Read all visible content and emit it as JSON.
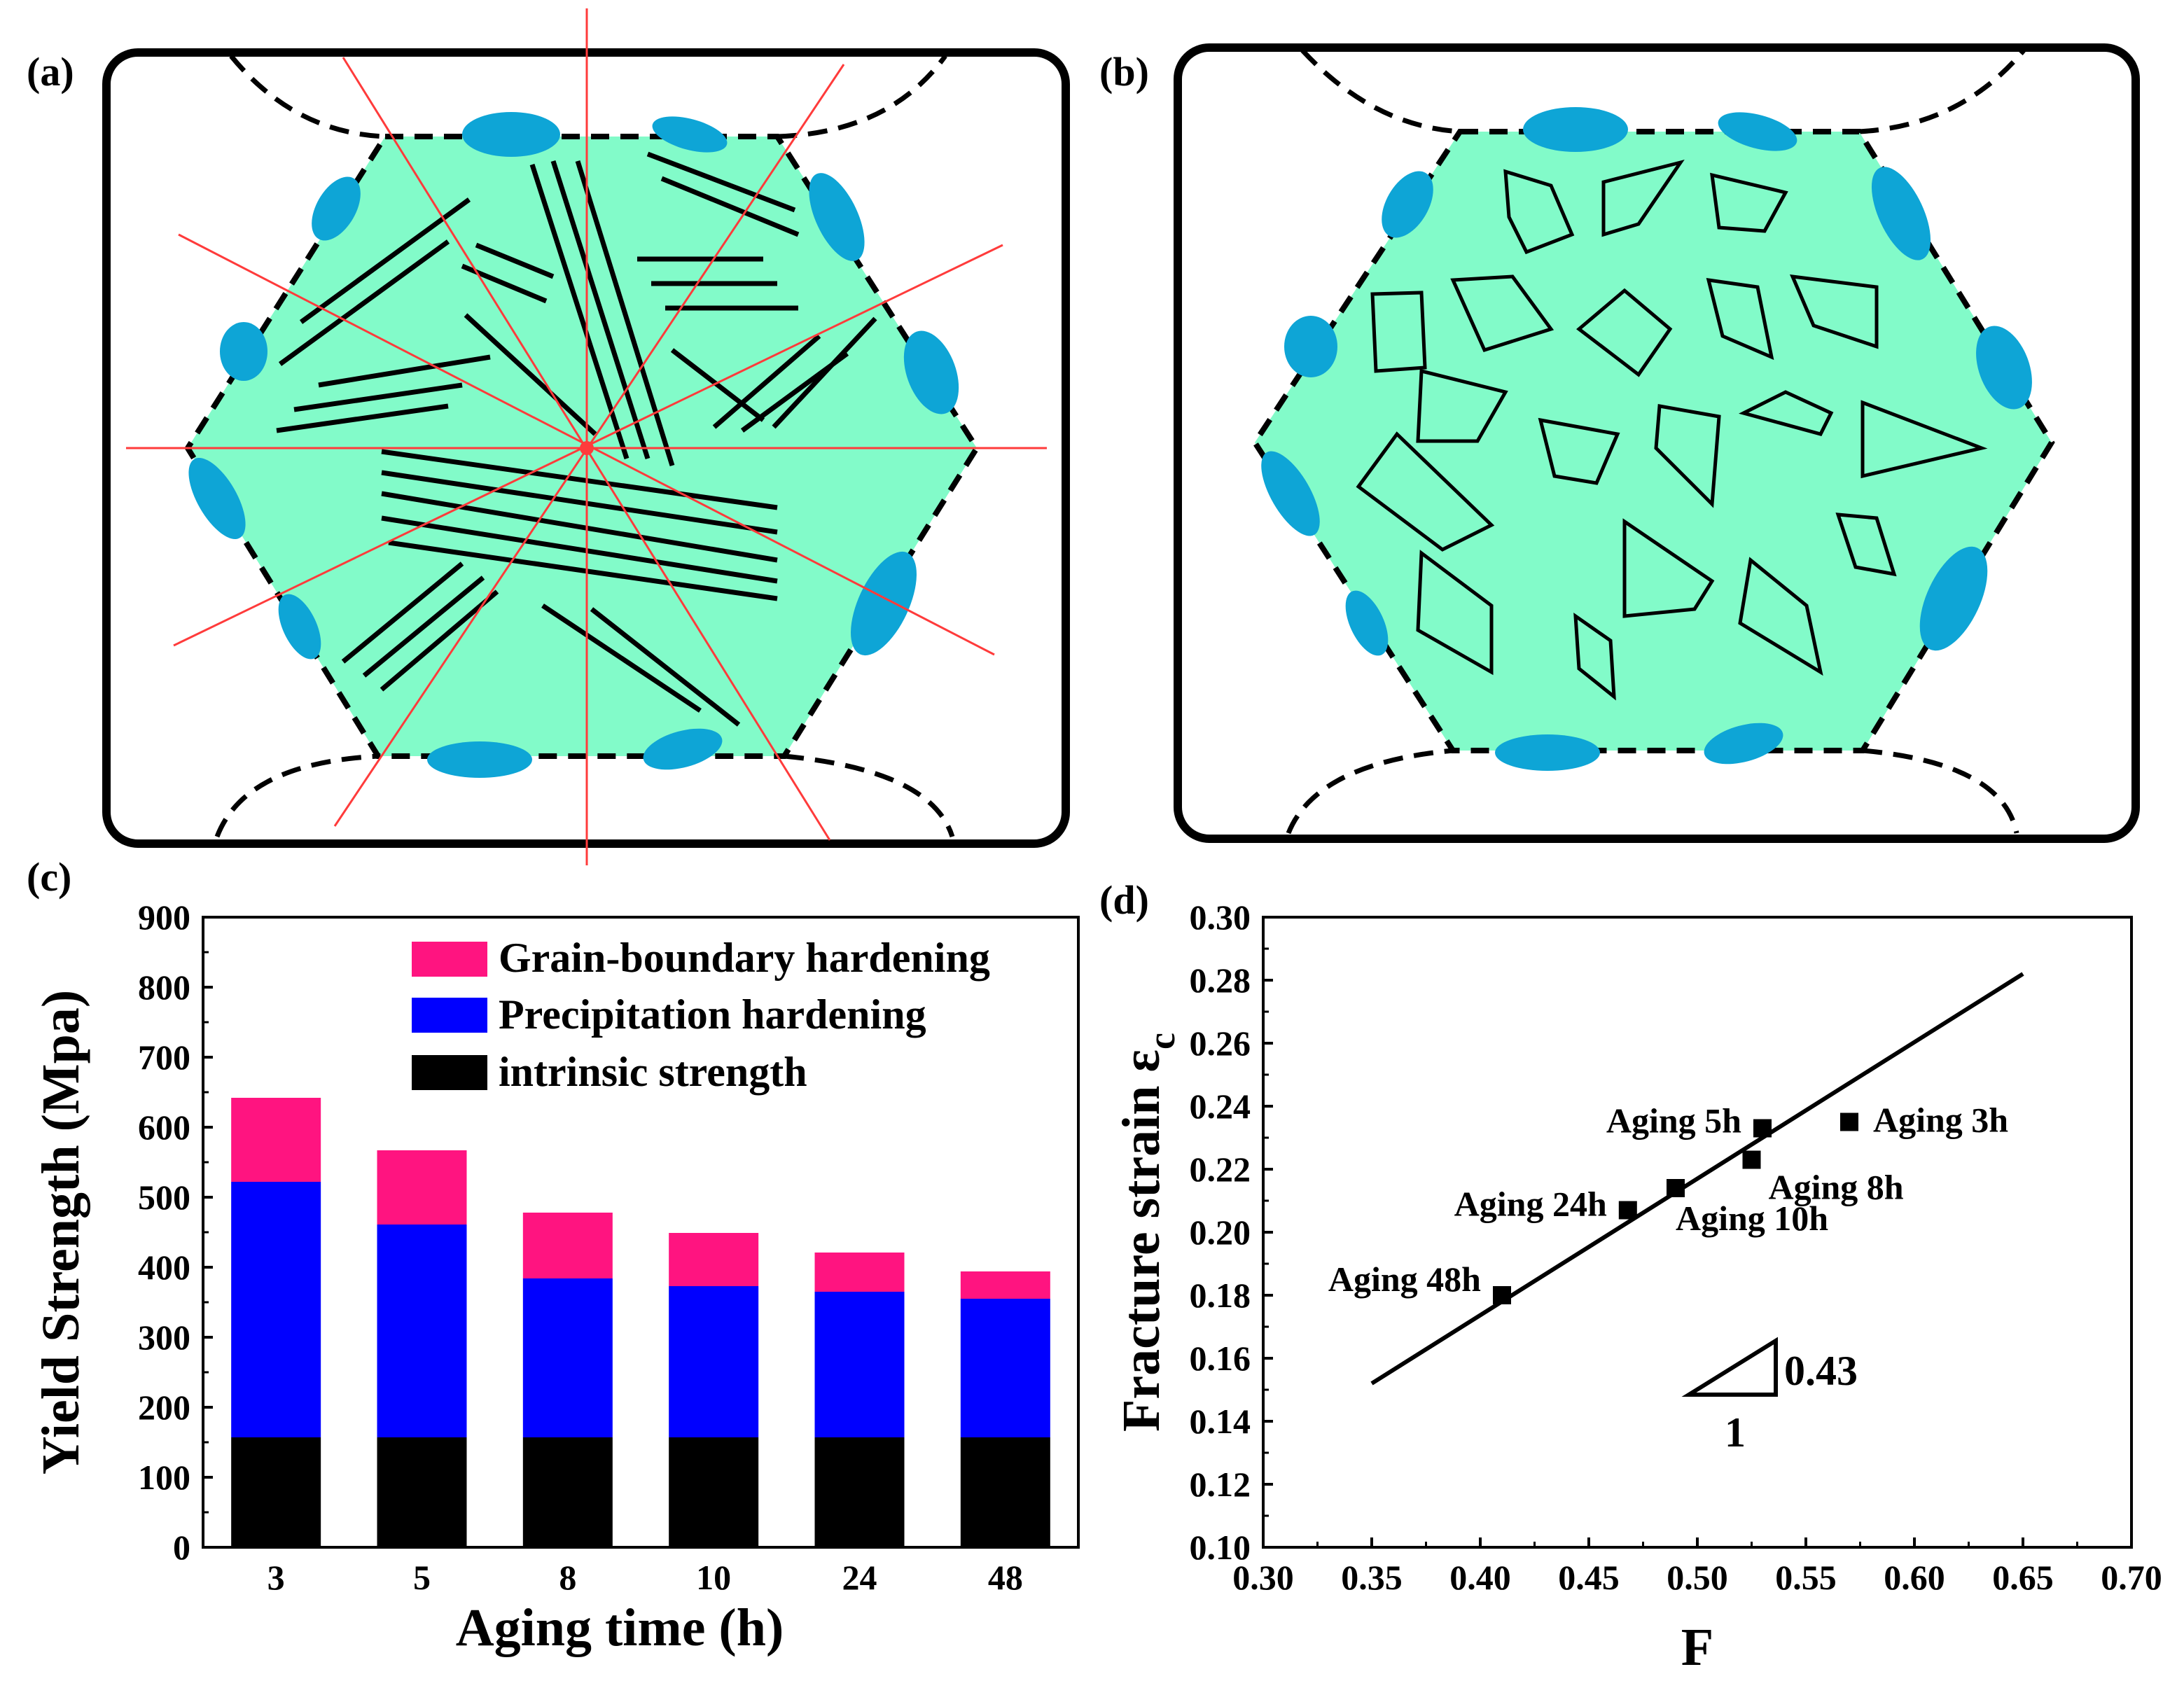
{
  "figure": {
    "panel_labels": {
      "a": "(a)",
      "b": "(b)",
      "c": "(c)",
      "d": "(d)"
    }
  },
  "colors": {
    "grain_fill": "#82fbc9",
    "boundary_particle": "#0ea5d6",
    "radial_line": "#ff3b3b",
    "grain_boundary_hardening": "#ff1480",
    "precipitation_hardening": "#0000ff",
    "intrinsic_strength": "#000000"
  },
  "chart_data": [
    {
      "panel": "(c)",
      "type": "bar",
      "stacked": true,
      "categories": [
        "3",
        "5",
        "8",
        "10",
        "24",
        "48"
      ],
      "series": [
        {
          "name": "intrinsic strength",
          "color": "#000000",
          "values": [
            157,
            157,
            157,
            157,
            157,
            157
          ]
        },
        {
          "name": "Precipitation hardening",
          "color": "#0000ff",
          "values": [
            365,
            304,
            227,
            216,
            208,
            198
          ]
        },
        {
          "name": "Grain-boundary hardening",
          "color": "#ff1480",
          "values": [
            120,
            106,
            94,
            76,
            56,
            39
          ]
        }
      ],
      "legend_order": [
        "Grain-boundary hardening",
        "Precipitation hardening",
        "intrinsic strength"
      ],
      "legend_position": "top-right",
      "xlabel": "Aging time (h)",
      "ylabel": "Yield Strength (Mpa)",
      "ylim": [
        0,
        900
      ],
      "yticks": [
        "0",
        "100",
        "200",
        "300",
        "400",
        "500",
        "600",
        "700",
        "800",
        "900"
      ]
    },
    {
      "panel": "(d)",
      "type": "scatter",
      "points": [
        {
          "label": "Aging 3h",
          "x": 0.57,
          "y": 0.235
        },
        {
          "label": "Aging 5h",
          "x": 0.53,
          "y": 0.233
        },
        {
          "label": "Aging 8h",
          "x": 0.525,
          "y": 0.223
        },
        {
          "label": "Aging 10h",
          "x": 0.49,
          "y": 0.214
        },
        {
          "label": "Aging 24h",
          "x": 0.468,
          "y": 0.207
        },
        {
          "label": "Aging 48h",
          "x": 0.41,
          "y": 0.18
        }
      ],
      "fit_line": {
        "x": [
          0.35,
          0.65
        ],
        "y": [
          0.152,
          0.282
        ]
      },
      "slope_triangle": {
        "rise_label": "0.43",
        "run_label": "1"
      },
      "xlabel": "F",
      "ylabel_main": "Fracture strain ε",
      "ylabel_sub": "c",
      "xlim": [
        0.3,
        0.7
      ],
      "ylim": [
        0.1,
        0.3
      ],
      "xticks": [
        "0.30",
        "0.35",
        "0.40",
        "0.45",
        "0.50",
        "0.55",
        "0.60",
        "0.65",
        "0.70"
      ],
      "yticks": [
        "0.10",
        "0.12",
        "0.14",
        "0.16",
        "0.18",
        "0.20",
        "0.22",
        "0.24",
        "0.26",
        "0.28",
        "0.30"
      ]
    }
  ]
}
